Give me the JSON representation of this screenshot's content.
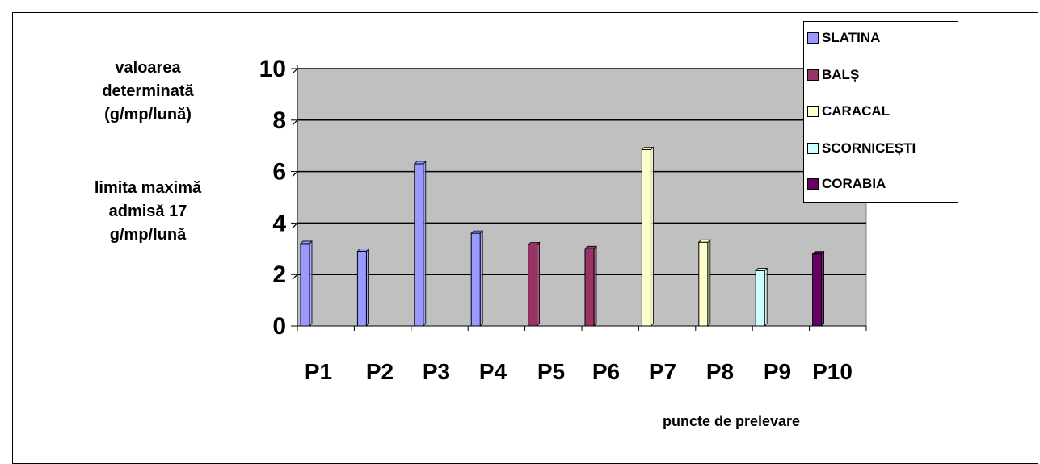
{
  "chart_data": {
    "type": "bar",
    "title": "",
    "ylabel": "valoarea determinată (g/mp/lună)",
    "ylabel_lines": [
      "valoarea",
      "determinată",
      "(g/mp/lună)"
    ],
    "note_lines": [
      "limita maximă",
      "admisă 17",
      "g/mp/lună"
    ],
    "xlabel": "puncte de prelevare",
    "ylim": [
      0,
      10
    ],
    "yticks": [
      0,
      2,
      4,
      6,
      8,
      10
    ],
    "categories": [
      "P1",
      "P2",
      "P3",
      "P4",
      "P5",
      "P6",
      "P7",
      "P8",
      "P9",
      "P10"
    ],
    "series": [
      {
        "name": "SLATINA",
        "color": "#9999ff",
        "values": [
          3.2,
          2.9,
          6.3,
          3.6,
          null,
          null,
          null,
          null,
          null,
          null
        ]
      },
      {
        "name": "BALȘ",
        "color": "#993366",
        "values": [
          null,
          null,
          null,
          null,
          3.15,
          3.0,
          null,
          null,
          null,
          null
        ]
      },
      {
        "name": "CARACAL",
        "color": "#ffffcc",
        "values": [
          null,
          null,
          null,
          null,
          null,
          null,
          6.85,
          3.25,
          null,
          null
        ]
      },
      {
        "name": "SCORNICEȘTI",
        "color": "#ccffff",
        "values": [
          null,
          null,
          null,
          null,
          null,
          null,
          null,
          null,
          2.15,
          null
        ]
      },
      {
        "name": "CORABIA",
        "color": "#660066",
        "values": [
          null,
          null,
          null,
          null,
          null,
          null,
          null,
          null,
          null,
          2.8
        ]
      }
    ],
    "grid": true,
    "plot_background": "#c0c0c0",
    "legend_position": "top-right"
  }
}
